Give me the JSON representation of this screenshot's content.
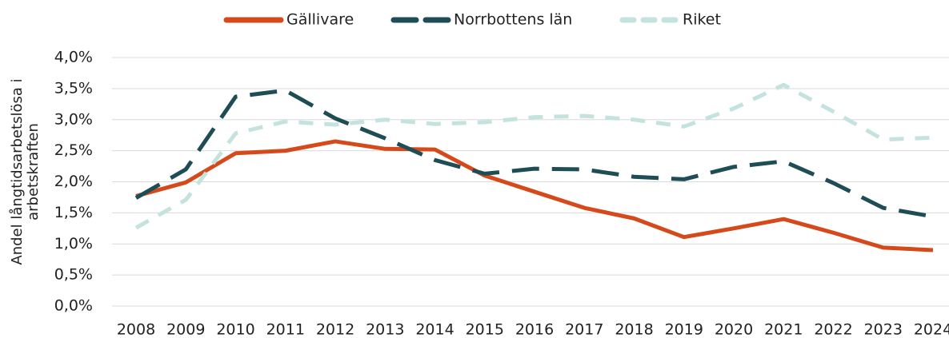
{
  "chart_data": {
    "type": "line",
    "y_label": "Andel långtidsarbetslösa i arbetskraften",
    "categories": [
      "2008",
      "2009",
      "2010",
      "2011",
      "2012",
      "2013",
      "2014",
      "2015",
      "2016",
      "2017",
      "2018",
      "2019",
      "2020",
      "2021",
      "2022",
      "2023",
      "2024"
    ],
    "series": [
      {
        "name": "Gällivare",
        "color": "#d5491a",
        "dash": "solid",
        "values": [
          1.77,
          1.99,
          2.46,
          2.5,
          2.65,
          2.53,
          2.52,
          2.1,
          1.84,
          1.58,
          1.41,
          1.11,
          1.25,
          1.4,
          1.18,
          0.94,
          0.9
        ]
      },
      {
        "name": "Norrbottens län",
        "color": "#1f4d56",
        "dash": "long",
        "values": [
          1.74,
          2.2,
          3.37,
          3.47,
          3.02,
          2.7,
          2.35,
          2.13,
          2.21,
          2.2,
          2.08,
          2.04,
          2.24,
          2.33,
          1.98,
          1.58,
          1.44
        ]
      },
      {
        "name": "Riket",
        "color": "#c4e3df",
        "dash": "short",
        "values": [
          1.26,
          1.71,
          2.78,
          2.97,
          2.92,
          3.0,
          2.93,
          2.96,
          3.04,
          3.06,
          3.0,
          2.89,
          3.18,
          3.56,
          3.13,
          2.68,
          2.71
        ]
      }
    ],
    "ylim": [
      0,
      4
    ],
    "yticks": [
      {
        "value": 0,
        "label": "0,0%"
      },
      {
        "value": 0.5,
        "label": "0,5%"
      },
      {
        "value": 1,
        "label": "1,0%"
      },
      {
        "value": 1.5,
        "label": "1,5%"
      },
      {
        "value": 2,
        "label": "2,0%"
      },
      {
        "value": 2.5,
        "label": "2,5%"
      },
      {
        "value": 3,
        "label": "3,0%"
      },
      {
        "value": 3.5,
        "label": "3,5%"
      },
      {
        "value": 4,
        "label": "4,0%"
      }
    ],
    "grid": true,
    "legend": "top"
  }
}
